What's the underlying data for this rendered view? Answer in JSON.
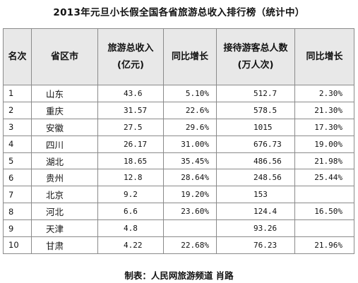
{
  "title": "2013年元旦小长假全国各省旅游总收入排行榜（统计中）",
  "headers": {
    "rank": "名次",
    "province": "省区市",
    "income_line1": "旅游总收入",
    "income_line2": "(亿元)",
    "income_yoy": "同比增长",
    "visitors_line1": "接待游客总人数",
    "visitors_line2": "(万人次)",
    "visitors_yoy": "同比增长"
  },
  "rows": [
    {
      "rank": "1",
      "province": "山东",
      "income": "43.6",
      "income_yoy": "5.10%",
      "visitors": "512.7",
      "visitors_yoy": "2.30%"
    },
    {
      "rank": "2",
      "province": "重庆",
      "income": "31.57",
      "income_yoy": "22.6%",
      "visitors": "578.5",
      "visitors_yoy": "21.30%"
    },
    {
      "rank": "3",
      "province": "安徽",
      "income": "27.5",
      "income_yoy": "29.6%",
      "visitors": "1015",
      "visitors_yoy": "17.30%"
    },
    {
      "rank": "4",
      "province": "四川",
      "income": "26.17",
      "income_yoy": "31.00%",
      "visitors": "676.73",
      "visitors_yoy": "19.00%"
    },
    {
      "rank": "5",
      "province": "湖北",
      "income": "18.65",
      "income_yoy": "35.45%",
      "visitors": "486.56",
      "visitors_yoy": "21.98%"
    },
    {
      "rank": "6",
      "province": "贵州",
      "income": "12.8",
      "income_yoy": "28.64%",
      "visitors": "248.56",
      "visitors_yoy": "25.44%"
    },
    {
      "rank": "7",
      "province": "北京",
      "income": "9.2",
      "income_yoy": "19.20%",
      "visitors": "153",
      "visitors_yoy": ""
    },
    {
      "rank": "8",
      "province": "河北",
      "income": "6.6",
      "income_yoy": "23.60%",
      "visitors": "124.4",
      "visitors_yoy": "16.50%"
    },
    {
      "rank": "9",
      "province": "天津",
      "income": "4.8",
      "income_yoy": "",
      "visitors": "93.26",
      "visitors_yoy": ""
    },
    {
      "rank": "10",
      "province": "甘肃",
      "income": "4.22",
      "income_yoy": "22.68%",
      "visitors": "76.23",
      "visitors_yoy": "21.96%"
    }
  ],
  "footer": "制表：人民网旅游频道  肖路"
}
